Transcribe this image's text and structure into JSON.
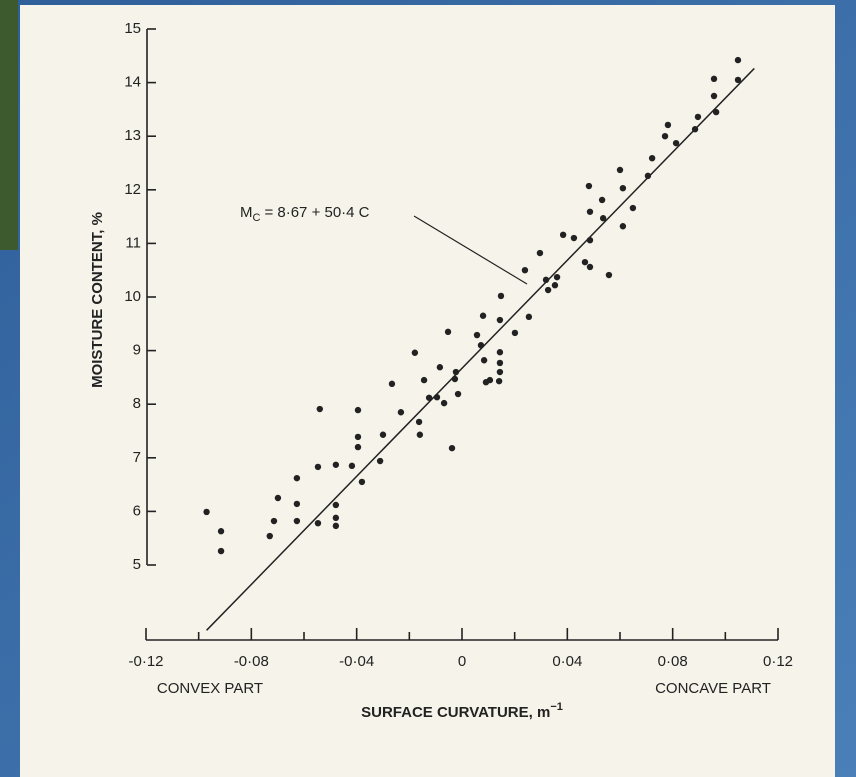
{
  "chart_data": {
    "type": "scatter",
    "xlabel": "SURFACE CURVATURE, m",
    "xlabel_sup": "−1",
    "ylabel": "MOISTURE CONTENT, %",
    "left_note": "CONVEX PART",
    "right_note": "CONCAVE PART",
    "equation_lhs": "M",
    "equation_sub": "C",
    "equation_rhs": "= 8·67 + 50·4 C",
    "fit": {
      "intercept": 8.67,
      "slope": 50.4,
      "xrange": [
        -0.097,
        0.111
      ]
    },
    "color": "#222222",
    "xlim": [
      -0.12,
      0.12
    ],
    "ylim": [
      5,
      15
    ],
    "xticks": [
      {
        "value": -0.12,
        "label": "-0·12"
      },
      {
        "value": -0.08,
        "label": "-0·08"
      },
      {
        "value": -0.04,
        "label": "-0·04"
      },
      0,
      {
        "value": 0.04,
        "label": "0·04"
      },
      {
        "value": 0.08,
        "label": "0·08"
      },
      {
        "value": 0.12,
        "label": "0·12"
      }
    ],
    "xminorticks": [
      -0.1,
      -0.06,
      -0.02,
      0.02,
      0.06,
      0.1
    ],
    "yticks": [
      5,
      6,
      7,
      8,
      9,
      10,
      11,
      12,
      13,
      14,
      15
    ],
    "x": [
      -0.097,
      -0.0915,
      -0.0915,
      -0.073,
      -0.0714,
      -0.0699,
      -0.0627,
      -0.0627,
      -0.0627,
      -0.0547,
      -0.0547,
      -0.0479,
      -0.0479,
      -0.0479,
      -0.0479,
      -0.054,
      -0.0418,
      -0.0395,
      -0.0395,
      -0.0395,
      -0.038,
      -0.0311,
      -0.03,
      -0.0266,
      -0.0232,
      -0.0179,
      -0.0163,
      -0.016,
      -0.0144,
      -0.0125,
      -0.0095,
      -0.0084,
      -0.0068,
      -0.0053,
      -0.0038,
      -0.0027,
      -0.0023,
      -0.0015,
      0.0057,
      0.0072,
      0.008,
      0.0084,
      0.0091,
      0.0106,
      0.0141,
      0.0144,
      0.0144,
      0.0144,
      0.0144,
      0.0148,
      0.0201,
      0.0239,
      0.0254,
      0.0296,
      0.0319,
      0.0327,
      0.0353,
      0.0361,
      0.0384,
      0.0425,
      0.0467,
      0.0482,
      0.0486,
      0.0486,
      0.0486,
      0.0532,
      0.0536,
      0.0558,
      0.06,
      0.0611,
      0.0611,
      0.0649,
      0.0706,
      0.0722,
      0.0771,
      0.0782,
      0.0813,
      0.0885,
      0.0896,
      0.0957,
      0.0957,
      0.0965,
      0.1048,
      0.1048
    ],
    "y": [
      5.99,
      5.63,
      5.26,
      5.54,
      5.82,
      6.25,
      5.82,
      6.14,
      6.62,
      5.78,
      6.83,
      5.73,
      6.12,
      5.88,
      6.87,
      7.91,
      6.85,
      7.2,
      7.39,
      7.89,
      6.55,
      6.94,
      7.43,
      8.38,
      7.85,
      8.96,
      7.67,
      7.43,
      8.45,
      8.12,
      8.13,
      8.69,
      8.02,
      9.35,
      7.18,
      8.47,
      8.6,
      8.19,
      9.29,
      9.1,
      9.65,
      8.82,
      8.41,
      8.45,
      8.43,
      8.6,
      8.77,
      8.97,
      9.57,
      10.02,
      9.33,
      10.5,
      9.63,
      10.82,
      10.32,
      10.13,
      10.22,
      10.37,
      11.16,
      11.1,
      10.65,
      12.07,
      11.06,
      11.59,
      10.56,
      11.81,
      11.47,
      10.41,
      12.37,
      12.03,
      11.32,
      11.66,
      12.26,
      12.59,
      13.0,
      13.21,
      12.87,
      13.13,
      13.36,
      14.07,
      13.75,
      13.45,
      14.42,
      14.05
    ]
  }
}
